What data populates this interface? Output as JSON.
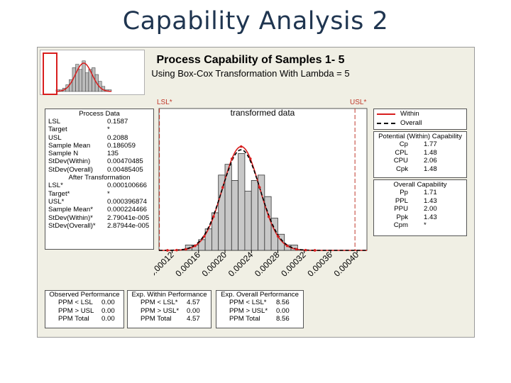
{
  "slide": {
    "title": "Capability Analysis 2"
  },
  "figure": {
    "title": "Process Capability of Samples 1- 5",
    "subtitle": "Using Box-Cox Transformation With Lambda = 5",
    "lsl_label": "LSL*",
    "usl_label": "USL*"
  },
  "process_data": {
    "header": "Process Data",
    "rows": [
      {
        "k": "LSL",
        "v": "0.1587"
      },
      {
        "k": "Target",
        "v": "*"
      },
      {
        "k": "USL",
        "v": "0.2088"
      },
      {
        "k": "Sample Mean",
        "v": "0.186059"
      },
      {
        "k": "Sample N",
        "v": "135"
      },
      {
        "k": "StDev(Within)",
        "v": "0.00470485"
      },
      {
        "k": "StDev(Overall)",
        "v": "0.00485405"
      }
    ],
    "after_header": "After Transformation",
    "after_rows": [
      {
        "k": "LSL*",
        "v": "0.000100666"
      },
      {
        "k": "Target*",
        "v": "*"
      },
      {
        "k": "USL*",
        "v": "0.000396874"
      },
      {
        "k": "Sample Mean*",
        "v": "0.000224466"
      },
      {
        "k": "StDev(Within)*",
        "v": "2.79041e-005"
      },
      {
        "k": "StDev(Overall)*",
        "v": "2.87944e-005"
      }
    ]
  },
  "legend": {
    "within": "Within",
    "overall": "Overall"
  },
  "potential": {
    "header": "Potential (Within) Capability",
    "rows": [
      {
        "k": "Cp",
        "v": "1.77"
      },
      {
        "k": "CPL",
        "v": "1.48"
      },
      {
        "k": "CPU",
        "v": "2.06"
      },
      {
        "k": "Cpk",
        "v": "1.48"
      }
    ]
  },
  "overall_cap": {
    "header": "Overall Capability",
    "rows": [
      {
        "k": "Pp",
        "v": "1.71"
      },
      {
        "k": "PPL",
        "v": "1.43"
      },
      {
        "k": "PPU",
        "v": "2.00"
      },
      {
        "k": "Ppk",
        "v": "1.43"
      },
      {
        "k": "Cpm",
        "v": "*"
      }
    ]
  },
  "observed": {
    "header": "Observed Performance",
    "rows": [
      {
        "k": "PPM < LSL",
        "v": "0.00"
      },
      {
        "k": "PPM > USL",
        "v": "0.00"
      },
      {
        "k": "PPM Total",
        "v": "0.00"
      }
    ]
  },
  "exp_within": {
    "header": "Exp. Within Performance",
    "rows": [
      {
        "k": "PPM < LSL*",
        "v": "4.57"
      },
      {
        "k": "PPM > USL*",
        "v": "0.00"
      },
      {
        "k": "PPM Total",
        "v": "4.57"
      }
    ]
  },
  "exp_overall": {
    "header": "Exp. Overall Performance",
    "rows": [
      {
        "k": "PPM < LSL*",
        "v": "8.56"
      },
      {
        "k": "PPM > USL*",
        "v": "0.00"
      },
      {
        "k": "PPM Total",
        "v": "8.56"
      }
    ]
  },
  "colors": {
    "within": "#d81e1e",
    "overall": "#000000",
    "bar_fill": "#c8c8c8",
    "spec": "#c0392b",
    "title": "#1f3550"
  },
  "chart_data": {
    "type": "bar",
    "title": "transformed data",
    "x_range": [
      0.0001,
      0.000415
    ],
    "x_ticks": [
      "0.00012",
      "0.00016",
      "0.00020",
      "0.00024",
      "0.00028",
      "0.00032",
      "0.00036",
      "0.00040"
    ],
    "x_tick_values": [
      0.00012,
      0.00016,
      0.0002,
      0.00024,
      0.00028,
      0.00032,
      0.00036,
      0.0004
    ],
    "bin_width": 1e-05,
    "bin_starts": [
      0.00014,
      0.00015,
      0.00016,
      0.00017,
      0.00018,
      0.00019,
      0.0002,
      0.00021,
      0.00022,
      0.00023,
      0.00024,
      0.00025,
      0.00026,
      0.00027,
      0.00028,
      0.00029,
      0.0003
    ],
    "counts": [
      1,
      1,
      2,
      4,
      7,
      14,
      16,
      13,
      18,
      11,
      13,
      14,
      10,
      6,
      3,
      1,
      1
    ],
    "lsl": 0.000100666,
    "usl": 0.000396874,
    "mean": 0.000224466,
    "stdev_within": 2.79041e-05,
    "stdev_overall": 2.87944e-05,
    "series": [
      {
        "name": "Within",
        "style": "solid"
      },
      {
        "name": "Overall",
        "style": "dashed"
      }
    ]
  }
}
